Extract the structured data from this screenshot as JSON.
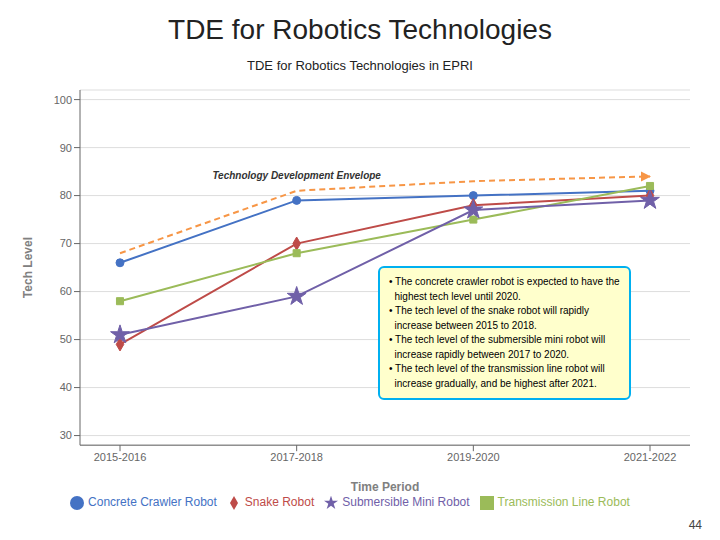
{
  "chart_data": {
    "type": "line",
    "title": "TDE for Robotics Technologies",
    "subtitle": "TDE for Robotics Technologies in EPRI",
    "x_label": "Time Period",
    "y_label": "Tech Level",
    "categories": [
      "2015-2016",
      "2017-2018",
      "2019-2020",
      "2021-2022"
    ],
    "series": [
      {
        "name": "Concrete Crawler Robot",
        "values": [
          66,
          79,
          80,
          81
        ],
        "color": "#4472C4",
        "marker": "circle"
      },
      {
        "name": "Snake Robot",
        "values": [
          49,
          70,
          78,
          80
        ],
        "color": "#BE4B48",
        "marker": "diamond"
      },
      {
        "name": "Transmission Line Robot",
        "values": [
          58,
          68,
          75,
          82
        ],
        "color": "#9BBB59",
        "marker": "square"
      },
      {
        "name": "Submersible Mini Robot",
        "values": [
          51,
          59,
          77,
          79
        ],
        "color": "#7060A8",
        "marker": "star"
      }
    ],
    "ylim": [
      28,
      102
    ],
    "yticks": [
      30,
      40,
      50,
      60,
      70,
      80,
      90,
      100
    ],
    "grid": true,
    "legend": "bottom",
    "annotations": [
      {
        "text": "Technology Development Envelope",
        "values": [
          68,
          81,
          83,
          84
        ],
        "color": "#F79646",
        "line_style": "dashed"
      },
      {
        "text": "• The concrete crawler robot is expected to have the\n  highest tech level until 2020.\n• The tech level of the snake robot will rapidly\n  increase between 2015 to 2018.\n• The tech level of the submersible mini robot will\n  increase rapidly between 2017 to 2020.\n• The tech level of the transmission line robot will\n  increase gradually, and be highest after 2021.",
        "color": "#00B0F0",
        "background_color": "#FFFFCC"
      },
      {
        "text": "44"
      }
    ]
  }
}
